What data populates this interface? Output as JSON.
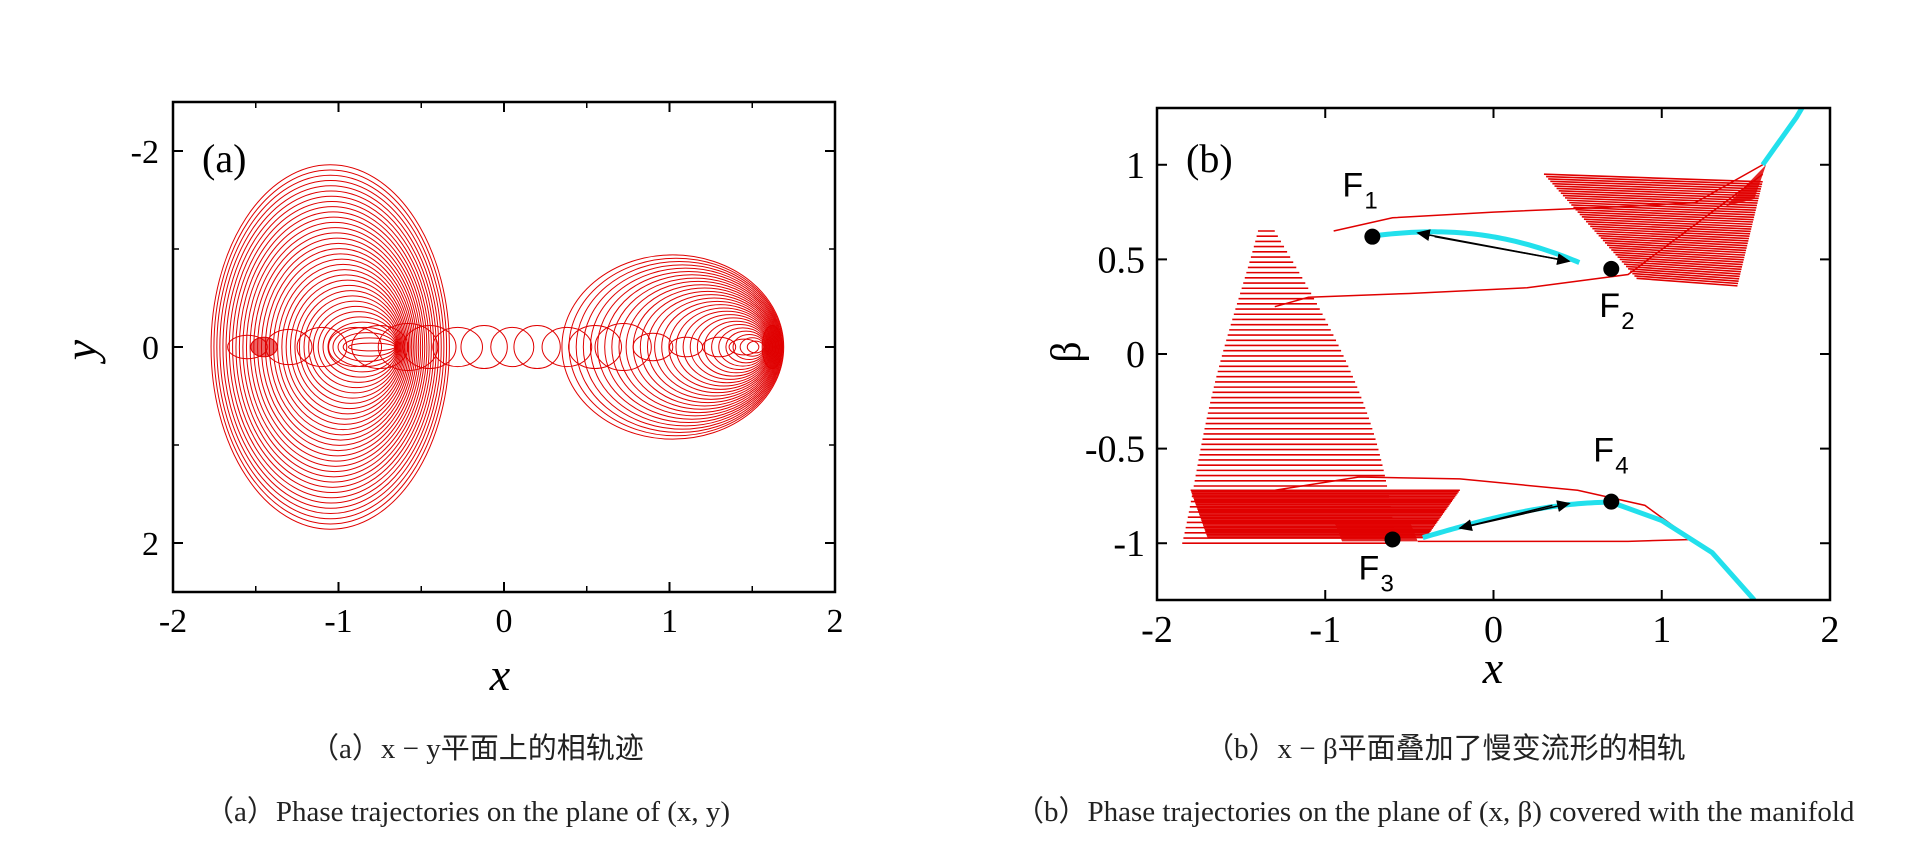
{
  "chart_data": [
    {
      "panel": "(a)",
      "type": "line",
      "xlabel": "x",
      "ylabel": "y",
      "xlim": [
        -2,
        2
      ],
      "ylim": [
        -2.5,
        2.5
      ],
      "xticks": [
        "-2",
        "-1",
        "0",
        "1",
        "2"
      ],
      "yticks": [
        "-2",
        "0",
        "2"
      ],
      "series_color": "#e00000",
      "caption_cn": "（a）x − y平面上的相轨迹",
      "caption_en": "（a）Phase trajectories on the plane of (x, y)"
    },
    {
      "panel": "(b)",
      "type": "line",
      "xlabel": "x",
      "ylabel": "β",
      "xlim": [
        -2,
        2
      ],
      "ylim": [
        -1.3,
        1.3
      ],
      "xticks": [
        "-2",
        "-1",
        "0",
        "1",
        "2"
      ],
      "yticks": [
        "1",
        "0.5",
        "0",
        "-0.5",
        "-1"
      ],
      "trajectory_color": "#e00000",
      "manifold_color": "#22e0ec",
      "points": [
        {
          "label": "F",
          "sub": "1",
          "x": -0.72,
          "y": 0.62
        },
        {
          "label": "F",
          "sub": "2",
          "x": 0.7,
          "y": 0.45
        },
        {
          "label": "F",
          "sub": "3",
          "x": -0.6,
          "y": -0.98
        },
        {
          "label": "F",
          "sub": "4",
          "x": 0.7,
          "y": -0.78
        }
      ],
      "caption_cn": "（b）x − β平面叠加了慢变流形的相轨",
      "caption_en": "（b）Phase trajectories on the plane of (x, β) covered with the manifold"
    }
  ]
}
